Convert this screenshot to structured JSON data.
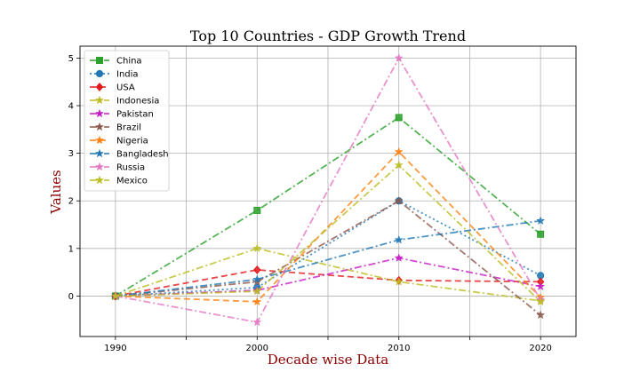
{
  "chart_data": {
    "type": "line",
    "title": "Top 10 Countries - GDP Growth Trend",
    "xlabel": "Decade wise Data",
    "ylabel": "Values",
    "x": [
      1990,
      2000,
      2010,
      2020
    ],
    "xticks": [
      "1990",
      "2000",
      "2010",
      "2020"
    ],
    "yticks": [
      "0",
      "1",
      "2",
      "3",
      "4",
      "5"
    ],
    "xlim": [
      1987.5,
      2022.5
    ],
    "ylim": [
      -0.85,
      5.25
    ],
    "grid": true,
    "legend_position": "top-left",
    "series": [
      {
        "name": "China",
        "values": [
          0,
          1.8,
          3.75,
          1.3
        ],
        "color": "#2ca02c",
        "marker": "square",
        "dash": "dashdot"
      },
      {
        "name": "India",
        "values": [
          0,
          0.18,
          2.0,
          0.43
        ],
        "color": "#1f77b4",
        "marker": "circle",
        "dash": "dotted"
      },
      {
        "name": "USA",
        "values": [
          0,
          0.55,
          0.33,
          0.3
        ],
        "color": "#e31a1c",
        "marker": "diamond",
        "dash": "dashed"
      },
      {
        "name": "Indonesia",
        "values": [
          0,
          1.0,
          0.3,
          -0.1
        ],
        "color": "#bcbd22",
        "marker": "star",
        "dash": "dashdot"
      },
      {
        "name": "Pakistan",
        "values": [
          0,
          0.12,
          0.8,
          0.2
        ],
        "color": "#c51bc5",
        "marker": "star",
        "dash": "dashdot"
      },
      {
        "name": "Brazil",
        "values": [
          0,
          0.3,
          2.0,
          -0.4
        ],
        "color": "#8c564b",
        "marker": "star",
        "dash": "dashdot"
      },
      {
        "name": "Nigeria",
        "values": [
          0,
          -0.12,
          3.03,
          -0.03
        ],
        "color": "#ff7f0e",
        "marker": "star",
        "dash": "dashed"
      },
      {
        "name": "Bangladesh",
        "values": [
          0,
          0.35,
          1.18,
          1.58
        ],
        "color": "#1f77b4",
        "marker": "star",
        "dash": "dashdot"
      },
      {
        "name": "Russia",
        "values": [
          0,
          -0.55,
          5.0,
          -0.08
        ],
        "color": "#e377c2",
        "marker": "star",
        "dash": "dashdot"
      },
      {
        "name": "Mexico",
        "values": [
          0,
          0.1,
          2.75,
          -0.12
        ],
        "color": "#bcbd22",
        "marker": "star",
        "dash": "dashdot"
      }
    ]
  }
}
